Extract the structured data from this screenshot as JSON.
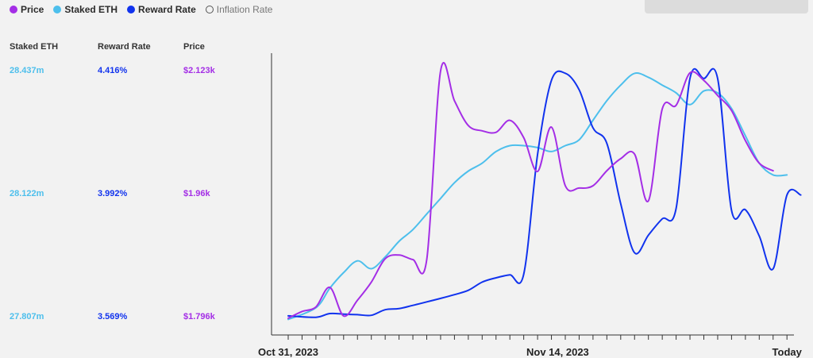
{
  "legend": [
    {
      "label": "Price",
      "color": "#a42ee6",
      "active": true
    },
    {
      "label": "Staked ETH",
      "color": "#4dbfec",
      "active": true
    },
    {
      "label": "Reward Rate",
      "color": "#1133ee",
      "active": true
    },
    {
      "label": "Inflation Rate",
      "color": "#555555",
      "active": false
    }
  ],
  "axes_headers": {
    "staked": "Staked ETH",
    "reward": "Reward Rate",
    "price": "Price"
  },
  "chart_data": {
    "type": "line",
    "x_labels": [
      "Oct 31, 2023",
      "Nov 14, 2023",
      "Today"
    ],
    "y_axes": [
      {
        "name": "Staked ETH",
        "color": "#4dbfec",
        "ticks": [
          "28.437m",
          "28.122m",
          "27.807m"
        ],
        "range": [
          27.807,
          28.437
        ]
      },
      {
        "name": "Reward Rate",
        "color": "#1133ee",
        "ticks": [
          "4.416%",
          "3.992%",
          "3.569%"
        ],
        "range": [
          3.569,
          4.416
        ]
      },
      {
        "name": "Price",
        "color": "#a42ee6",
        "ticks": [
          "$2.123k",
          "$1.96k",
          "$1.796k"
        ],
        "range": [
          1.796,
          2.123
        ]
      }
    ],
    "series": [
      {
        "name": "Staked ETH",
        "color": "#4dbfec",
        "axis": 0,
        "points": [
          [
            0,
            27.8
          ],
          [
            2,
            27.83
          ],
          [
            3,
            27.88
          ],
          [
            4,
            27.92
          ],
          [
            5,
            27.95
          ],
          [
            6,
            27.93
          ],
          [
            7,
            27.96
          ],
          [
            8,
            28.0
          ],
          [
            9,
            28.03
          ],
          [
            10,
            28.07
          ],
          [
            11,
            28.11
          ],
          [
            12,
            28.15
          ],
          [
            13,
            28.18
          ],
          [
            14,
            28.2
          ],
          [
            15,
            28.23
          ],
          [
            16,
            28.245
          ],
          [
            17,
            28.245
          ],
          [
            18,
            28.24
          ],
          [
            19,
            28.23
          ],
          [
            20,
            28.245
          ],
          [
            21,
            28.26
          ],
          [
            22,
            28.31
          ],
          [
            23,
            28.36
          ],
          [
            24,
            28.4
          ],
          [
            25,
            28.43
          ],
          [
            26,
            28.42
          ],
          [
            27,
            28.4
          ],
          [
            28,
            28.38
          ],
          [
            29,
            28.35
          ],
          [
            30,
            28.385
          ],
          [
            31,
            28.38
          ],
          [
            32,
            28.34
          ],
          [
            33,
            28.27
          ],
          [
            34,
            28.2
          ],
          [
            35,
            28.17
          ],
          [
            36,
            28.17
          ]
        ]
      },
      {
        "name": "Reward Rate",
        "color": "#1133ee",
        "axis": 1,
        "points": [
          [
            0,
            3.572
          ],
          [
            2,
            3.567
          ],
          [
            3,
            3.58
          ],
          [
            4,
            3.578
          ],
          [
            5,
            3.576
          ],
          [
            6,
            3.574
          ],
          [
            7,
            3.593
          ],
          [
            8,
            3.597
          ],
          [
            9,
            3.608
          ],
          [
            10,
            3.62
          ],
          [
            11,
            3.632
          ],
          [
            12,
            3.645
          ],
          [
            13,
            3.66
          ],
          [
            14,
            3.688
          ],
          [
            15,
            3.703
          ],
          [
            16,
            3.713
          ],
          [
            17,
            3.715
          ],
          [
            18,
            4.128
          ],
          [
            19,
            4.382
          ],
          [
            20,
            4.407
          ],
          [
            21,
            4.35
          ],
          [
            22,
            4.219
          ],
          [
            23,
            4.166
          ],
          [
            24,
            3.958
          ],
          [
            25,
            3.789
          ],
          [
            26,
            3.85
          ],
          [
            27,
            3.906
          ],
          [
            28,
            3.942
          ],
          [
            29,
            4.389
          ],
          [
            30,
            4.389
          ],
          [
            31,
            4.389
          ],
          [
            32,
            3.935
          ],
          [
            33,
            3.937
          ],
          [
            34,
            3.847
          ],
          [
            35,
            3.734
          ],
          [
            36,
            3.988
          ],
          [
            37,
            3.988
          ]
        ]
      },
      {
        "name": "Price",
        "color": "#a42ee6",
        "axis": 2,
        "points": [
          [
            0,
            1.794
          ],
          [
            1,
            1.803
          ],
          [
            2,
            1.809
          ],
          [
            3,
            1.835
          ],
          [
            4,
            1.797
          ],
          [
            5,
            1.818
          ],
          [
            6,
            1.842
          ],
          [
            7,
            1.873
          ],
          [
            8,
            1.878
          ],
          [
            9,
            1.872
          ],
          [
            10,
            1.872
          ],
          [
            11,
            2.123
          ],
          [
            12,
            2.083
          ],
          [
            13,
            2.05
          ],
          [
            14,
            2.043
          ],
          [
            15,
            2.041
          ],
          [
            16,
            2.057
          ],
          [
            17,
            2.034
          ],
          [
            18,
            1.989
          ],
          [
            19,
            2.048
          ],
          [
            20,
            1.97
          ],
          [
            21,
            1.967
          ],
          [
            22,
            1.97
          ],
          [
            23,
            1.99
          ],
          [
            24,
            2.006
          ],
          [
            25,
            2.012
          ],
          [
            26,
            1.95
          ],
          [
            27,
            2.072
          ],
          [
            28,
            2.077
          ],
          [
            29,
            2.12
          ],
          [
            30,
            2.11
          ],
          [
            31,
            2.09
          ],
          [
            32,
            2.07
          ],
          [
            33,
            2.03
          ],
          [
            34,
            2.0
          ],
          [
            35,
            1.99
          ]
        ]
      }
    ]
  }
}
